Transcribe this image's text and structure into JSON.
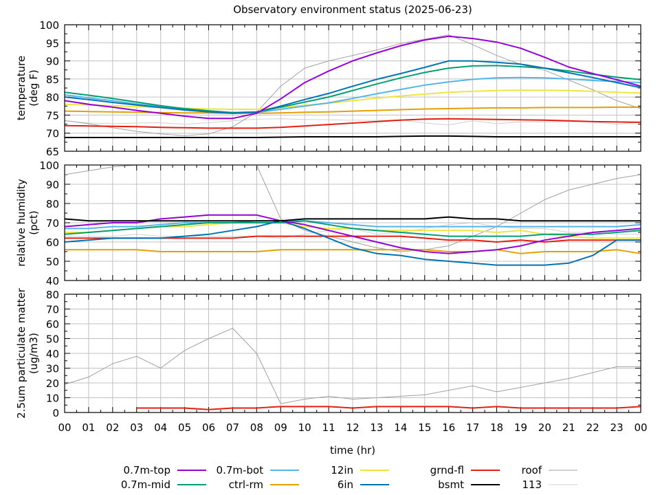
{
  "chart_data": {
    "type": "line",
    "title": "Observatory environment status (2025-06-23)",
    "xlabel": "time (hr)",
    "x_tick_labels": [
      "00",
      "01",
      "02",
      "03",
      "04",
      "05",
      "06",
      "07",
      "08",
      "09",
      "10",
      "11",
      "12",
      "13",
      "14",
      "15",
      "16",
      "17",
      "18",
      "19",
      "20",
      "21",
      "22",
      "23",
      "00"
    ],
    "xlim": [
      0,
      24
    ],
    "grid": true,
    "legend_placement": "bottom",
    "hours": [
      0,
      1,
      2,
      3,
      4,
      5,
      6,
      7,
      8,
      9,
      10,
      11,
      12,
      13,
      14,
      15,
      16,
      17,
      18,
      19,
      20,
      21,
      22,
      23,
      24
    ],
    "series_styles": [
      {
        "name": "0.7m-top",
        "color": "#9400d3",
        "width": 2
      },
      {
        "name": "0.7m-mid",
        "color": "#009e73",
        "width": 2
      },
      {
        "name": "0.7m-bot",
        "color": "#56b4e9",
        "width": 2
      },
      {
        "name": "ctrl-rm",
        "color": "#e69f00",
        "width": 2
      },
      {
        "name": "12in",
        "color": "#f0e442",
        "width": 2
      },
      {
        "name": "6in",
        "color": "#0072b2",
        "width": 2
      },
      {
        "name": "grnd-fl",
        "color": "#e51e10",
        "width": 2
      },
      {
        "name": "bsmt",
        "color": "#000000",
        "width": 2
      },
      {
        "name": "roof",
        "color": "#a0a0a0",
        "width": 1
      },
      {
        "name": "113",
        "color": "#d0d0d0",
        "width": 1
      }
    ],
    "legend_rows": [
      [
        "0.7m-top",
        "0.7m-bot",
        "12in",
        "grnd-fl",
        "roof"
      ],
      [
        "0.7m-mid",
        "ctrl-rm",
        "6in",
        "bsmt",
        "113"
      ]
    ],
    "panels": [
      {
        "ylabel_lines": [
          "temperature",
          "(deg F)"
        ],
        "ylim": [
          65,
          100
        ],
        "yticks": [
          65,
          70,
          75,
          80,
          85,
          90,
          95,
          100
        ],
        "series": [
          {
            "name": "0.7m-top",
            "values": [
              79,
              78,
              77.2,
              76.3,
              75.5,
              74.7,
              74.1,
              74.1,
              75.5,
              79.5,
              84,
              87.2,
              90,
              92.2,
              94.2,
              95.8,
              96.8,
              96.2,
              95.2,
              93.5,
              91,
              88.3,
              86.5,
              84.8,
              83
            ]
          },
          {
            "name": "0.7m-mid",
            "values": [
              81.3,
              80.5,
              79.6,
              78.6,
              77.6,
              76.8,
              76.2,
              75.7,
              75.9,
              77.2,
              78.6,
              80,
              81.8,
              83.6,
              85.3,
              86.8,
              88,
              88.6,
              88.7,
              88.4,
              88,
              87.2,
              86.3,
              85.5,
              84.8
            ]
          },
          {
            "name": "0.7m-bot",
            "values": [
              80.6,
              79.8,
              79,
              78.1,
              77.3,
              76.6,
              76,
              75.7,
              75.7,
              76.6,
              77.5,
              78.4,
              79.6,
              80.9,
              82.1,
              83.3,
              84.2,
              84.9,
              85.3,
              85.4,
              85.3,
              85,
              84.6,
              84.3,
              84
            ]
          },
          {
            "name": "ctrl-rm",
            "values": [
              76.1,
              76,
              75.9,
              75.8,
              75.7,
              75.6,
              75.6,
              75.5,
              75.5,
              75.6,
              75.8,
              75.9,
              76.1,
              76.3,
              76.5,
              76.7,
              76.8,
              76.9,
              77,
              77,
              77.1,
              77.1,
              77.1,
              77.2,
              77.2
            ]
          },
          {
            "name": "12in",
            "values": [
              78,
              77.8,
              77.6,
              77.3,
              77.1,
              76.9,
              76.7,
              76.6,
              76.6,
              77.1,
              77.7,
              78.3,
              79,
              79.7,
              80.3,
              80.8,
              81.3,
              81.6,
              81.8,
              81.9,
              81.9,
              81.8,
              81.6,
              81.3,
              81.1
            ]
          },
          {
            "name": "6in",
            "values": [
              80,
              79.3,
              78.5,
              77.8,
              77.1,
              76.4,
              75.9,
              75.5,
              75.8,
              77.5,
              79.3,
              81,
              83,
              84.9,
              86.5,
              88.2,
              90,
              90,
              89.6,
              89.1,
              88,
              86.7,
              85.4,
              84,
              82.6
            ]
          },
          {
            "name": "grnd-fl",
            "values": [
              72.1,
              72,
              71.9,
              71.8,
              71.6,
              71.5,
              71.4,
              71.4,
              71.4,
              71.6,
              72,
              72.4,
              72.8,
              73.2,
              73.6,
              73.9,
              74,
              73.9,
              73.8,
              73.7,
              73.6,
              73.4,
              73.2,
              73.1,
              73
            ]
          },
          {
            "name": "bsmt",
            "values": [
              68.8,
              68.8,
              68.8,
              68.8,
              68.8,
              68.8,
              68.8,
              68.8,
              68.8,
              68.9,
              69,
              69,
              69,
              69,
              69.1,
              69.2,
              69.2,
              69.1,
              69,
              69,
              69,
              69,
              69,
              69,
              69
            ]
          },
          {
            "name": "roof",
            "values": [
              73.5,
              72.6,
              71.5,
              70.5,
              69.8,
              69.3,
              69.8,
              71.8,
              75.8,
              83,
              88,
              90,
              91.5,
              93,
              94.8,
              96,
              97.2,
              94.5,
              91.5,
              89,
              87.4,
              84.7,
              82,
              79,
              76.8
            ]
          },
          {
            "name": "113",
            "values": [
              73.4,
              72.8,
              72.6,
              72.8,
              72.9,
              72.5,
              72.9,
              73.4,
              73.9,
              74,
              73.8,
              73.7,
              73.6,
              73.5,
              73.7,
              72.8,
              72.3,
              73.4,
              72.6,
              73.1,
              73.1,
              73.2,
              73.1,
              72.5,
              73
            ]
          }
        ]
      },
      {
        "ylabel_lines": [
          "relative humidity",
          "(pct)"
        ],
        "ylim": [
          40,
          100
        ],
        "yticks": [
          40,
          50,
          60,
          70,
          80,
          90,
          100
        ],
        "series": [
          {
            "name": "0.7m-top",
            "values": [
              68,
              69,
              70,
              70,
              72,
              73,
              74,
              74,
              74,
              71,
              69,
              66,
              63,
              60,
              57,
              55,
              54,
              55,
              56,
              58,
              61,
              63,
              65,
              66,
              67
            ]
          },
          {
            "name": "0.7m-mid",
            "values": [
              64,
              65,
              66,
              67,
              68,
              69,
              70,
              70,
              70,
              70,
              71,
              69,
              67,
              66,
              65,
              64,
              63,
              63,
              63,
              63,
              64,
              64,
              64,
              65,
              66
            ]
          },
          {
            "name": "0.7m-bot",
            "values": [
              67,
              67,
              68,
              68,
              69,
              70,
              70,
              70,
              71,
              71,
              71,
              70,
              69,
              68,
              68,
              68,
              68,
              68,
              68,
              68,
              68,
              68,
              68,
              68,
              69
            ]
          },
          {
            "name": "ctrl-rm",
            "values": [
              56,
              56,
              56,
              56,
              55,
              55,
              55,
              55,
              55,
              56,
              56,
              56,
              56,
              56,
              56,
              56,
              55,
              55,
              56,
              54,
              55,
              55,
              55,
              56,
              54
            ]
          },
          {
            "name": "12in",
            "values": [
              65,
              65,
              66,
              67,
              68,
              68,
              69,
              70,
              70,
              70,
              68,
              67,
              67,
              66,
              66,
              66,
              66,
              66,
              65,
              66,
              64,
              63,
              62,
              62,
              62
            ]
          },
          {
            "name": "6in",
            "values": [
              60,
              61,
              62,
              62,
              62,
              63,
              64,
              66,
              68,
              71,
              67,
              62,
              57,
              54,
              53,
              51,
              50,
              49,
              48,
              48,
              48,
              49,
              53,
              61,
              61
            ]
          },
          {
            "name": "grnd-fl",
            "values": [
              62,
              62,
              62,
              62,
              62,
              62,
              62,
              62,
              63,
              63,
              63,
              63,
              63,
              63,
              63,
              62,
              61,
              61,
              60,
              61,
              60,
              61,
              61,
              61,
              61
            ]
          },
          {
            "name": "bsmt",
            "values": [
              72,
              71,
              71,
              71,
              71,
              71,
              71,
              71,
              71,
              71,
              72,
              72,
              72,
              72,
              72,
              72,
              73,
              72,
              72,
              71,
              71,
              71,
              71,
              71,
              71
            ]
          },
          {
            "name": "roof",
            "values": [
              95,
              97,
              99,
              100,
              100,
              100,
              100,
              100,
              100,
              72,
              66,
              63,
              60,
              57,
              55,
              56,
              58,
              63,
              68,
              75,
              82,
              87,
              90,
              93,
              95
            ]
          },
          {
            "name": "113",
            "values": [
              63,
              63,
              63,
              64,
              63,
              63,
              63,
              63,
              63,
              62,
              64,
              66,
              67,
              64,
              65,
              67,
              69,
              70,
              68,
              67,
              67,
              65,
              65,
              64,
              64
            ]
          }
        ]
      },
      {
        "ylabel_lines": [
          "2.5um particulate matter",
          "(ug/m3)"
        ],
        "ylim": [
          0,
          80
        ],
        "yticks": [
          0,
          10,
          20,
          30,
          40,
          50,
          60,
          70,
          80
        ],
        "series": [
          {
            "name": "grnd-fl",
            "values": [
              null,
              null,
              null,
              3,
              3,
              3,
              2,
              3,
              3,
              4,
              4,
              4,
              3,
              4,
              4,
              4,
              4,
              3,
              4,
              3,
              3,
              3,
              3,
              3,
              4
            ]
          },
          {
            "name": "roof",
            "values": [
              19,
              24,
              33,
              38,
              30,
              42,
              50,
              57,
              40,
              6,
              9,
              11,
              9,
              10,
              11,
              12,
              15,
              18,
              14,
              17,
              20,
              23,
              27,
              31,
              31
            ]
          }
        ]
      }
    ]
  }
}
